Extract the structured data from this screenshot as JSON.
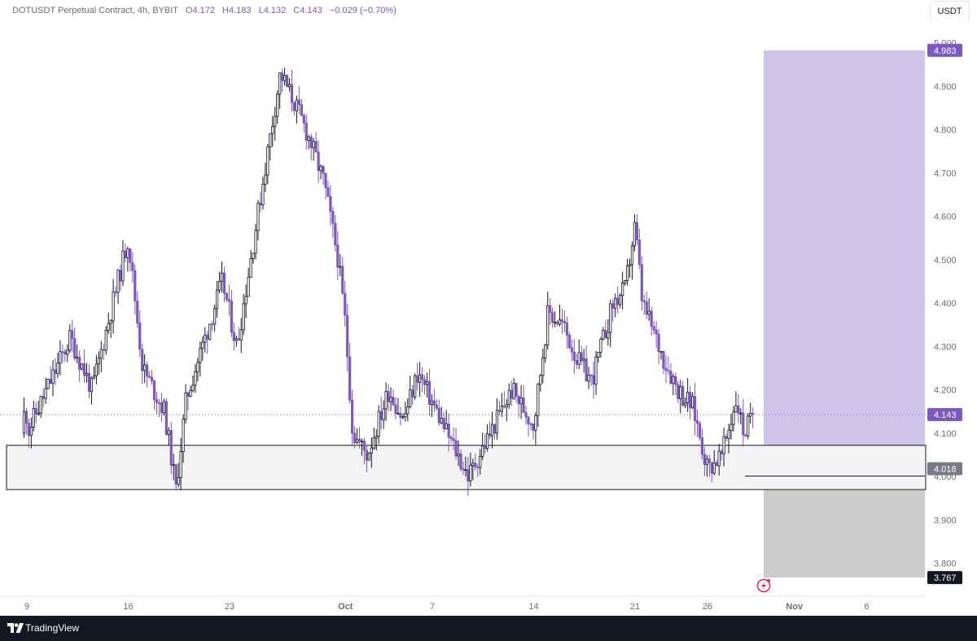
{
  "header": {
    "symbol": "DOTUSDT Perpetual Contract, 4h, BYBIT",
    "o_label": "O",
    "o": "4.172",
    "h_label": "H",
    "h": "4.183",
    "l_label": "L",
    "l": "4.132",
    "c_label": "C",
    "c": "4.143",
    "change": "−0.029 (−0.70%)"
  },
  "currency_button": "USDT",
  "footer": {
    "brand": "TradingView"
  },
  "colors": {
    "up": "#ffffff",
    "down": "#7e57c2",
    "outline": "#131722",
    "profit_zone": "#d1c4e9",
    "stop_zone": "#cccccc",
    "demand_zone": "#f3f3f5"
  },
  "chart_data": {
    "type": "candlestick",
    "ylim": [
      3.74,
      5.0
    ],
    "ytick_labels": [
      "5.000",
      "4.900",
      "4.800",
      "4.700",
      "4.600",
      "4.500",
      "4.400",
      "4.300",
      "4.200",
      "4.100",
      "4.000",
      "3.900",
      "3.800"
    ],
    "xtick_labels": [
      "9",
      "16",
      "23",
      "Oct",
      "7",
      "14",
      "21",
      "26",
      "Nov",
      "6"
    ],
    "current_price": "4.143",
    "price_tags": [
      {
        "value": "4.983",
        "role": "target"
      },
      {
        "value": "4.143",
        "role": "current"
      },
      {
        "value": "4.018",
        "role": "entry"
      },
      {
        "value": "3.767",
        "role": "stop"
      }
    ],
    "demand_zone": {
      "top": 4.072,
      "bottom": 3.97
    },
    "position": {
      "entry": 4.018,
      "target": 4.983,
      "stop": 3.767
    },
    "price_path": [
      [
        9,
        4.1
      ],
      [
        12,
        4.32
      ],
      [
        13.5,
        4.2
      ],
      [
        16,
        4.55
      ],
      [
        17,
        4.25
      ],
      [
        18.5,
        4.15
      ],
      [
        19.3,
        3.97
      ],
      [
        20,
        4.18
      ],
      [
        22.5,
        4.45
      ],
      [
        23.5,
        4.3
      ],
      [
        25.3,
        4.68
      ],
      [
        26.5,
        4.93
      ],
      [
        27.5,
        4.86
      ],
      [
        28.5,
        4.78
      ],
      [
        29.5,
        4.68
      ],
      [
        30.5,
        4.5
      ],
      [
        31,
        4.35
      ],
      [
        31.5,
        4.1
      ],
      [
        32.5,
        4.05
      ],
      [
        34,
        4.2
      ],
      [
        35,
        4.13
      ],
      [
        36,
        4.24
      ],
      [
        38,
        4.1
      ],
      [
        39.5,
        4.0
      ],
      [
        41,
        4.1
      ],
      [
        42.5,
        4.2
      ],
      [
        44,
        4.12
      ],
      [
        45,
        4.38
      ],
      [
        46,
        4.35
      ],
      [
        47,
        4.27
      ],
      [
        48,
        4.22
      ],
      [
        49.5,
        4.4
      ],
      [
        50.3,
        4.43
      ],
      [
        51,
        4.58
      ],
      [
        51.5,
        4.4
      ],
      [
        53,
        4.27
      ],
      [
        54,
        4.2
      ],
      [
        55,
        4.16
      ],
      [
        56,
        4.02
      ],
      [
        57,
        4.05
      ],
      [
        58,
        4.18
      ],
      [
        58.5,
        4.1
      ],
      [
        59.2,
        4.143
      ]
    ]
  }
}
